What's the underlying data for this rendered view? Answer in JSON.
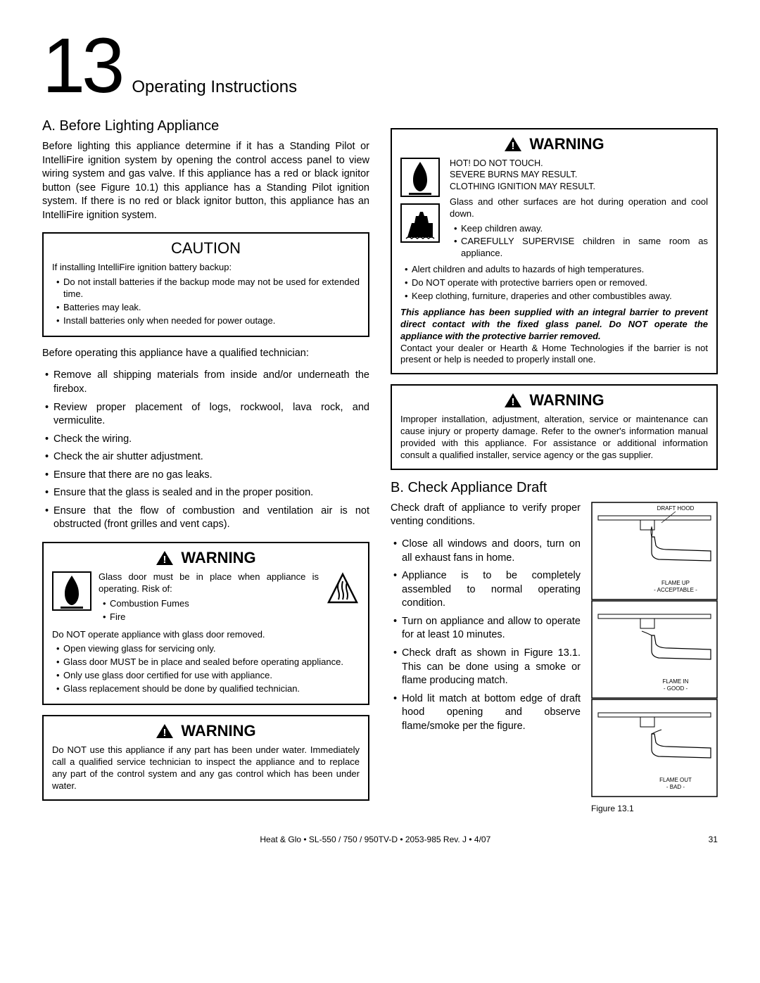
{
  "header": {
    "section_number": "13",
    "section_title": "Operating Instructions"
  },
  "left": {
    "a_head": "A.  Before Lighting Appliance",
    "a_intro": "Before lighting this appliance determine if it has a Standing Pilot or IntelliFire ignition system by opening the control access panel to view wiring system and gas valve. If this appliance has a red or black ignitor button (see Figure 10.1) this appliance has a Standing Pilot ignition system. If there is no red or black ignitor button, this appliance has an IntelliFire ignition system.",
    "caution_title": "CAUTION",
    "caution_lead": "If installing IntelliFire ignition battery backup:",
    "caution_items": [
      "Do not install batteries if the backup mode may not be used for extended time.",
      "Batteries may leak.",
      "Install batteries only when needed for power outage."
    ],
    "before_op": "Before operating this appliance have a qualified technician:",
    "before_items": [
      "Remove all shipping materials from inside and/or underneath the firebox.",
      "Review proper placement of logs, rockwool, lava rock, and vermiculite.",
      "Check the wiring.",
      "Check the air shutter adjustment.",
      "Ensure that there are no gas leaks.",
      "Ensure that the glass is sealed and in the proper position.",
      "Ensure that the flow of combustion and ventilation air is not obstructed (front grilles and vent caps)."
    ],
    "warn1_title": "WARNING",
    "warn1_lead": "Glass door must be in place when appliance is operating. Risk of:",
    "warn1_sub": [
      "Combustion Fumes",
      "Fire"
    ],
    "warn1_line": "Do NOT operate appliance with glass door removed.",
    "warn1_items": [
      "Open viewing glass for servicing only.",
      "Glass door MUST be in place and sealed before operating appliance.",
      "Only use glass door certified for use with appliance.",
      "Glass replacement should be done by qualified technician."
    ],
    "warn2_title": "WARNING",
    "warn2_text": "Do NOT use this appliance if any part has been under water. Immediately call a qualified service technician to inspect the appliance and to replace any part of the control system and any gas control which has been under water."
  },
  "right": {
    "warn3_title": "WARNING",
    "hot1": "HOT! DO NOT TOUCH.",
    "hot2": "SEVERE BURNS MAY RESULT.",
    "hot3": "CLOTHING IGNITION MAY RESULT.",
    "hot_body": "Glass and other surfaces are hot during operation and cool down.",
    "hot_items_small": [
      "Keep children away.",
      "CAREFULLY SUPERVISE children in same room as appliance."
    ],
    "hot_items": [
      "Alert children and adults to hazards of high temperatures.",
      "Do NOT operate with protective barriers open or removed.",
      "Keep clothing, furniture, draperies and other combustibles away."
    ],
    "barrier_bold": "This appliance has been supplied with an integral barrier to prevent direct contact with the fixed glass panel. Do NOT operate the appliance with the protective barrier removed.",
    "barrier_tail": "Contact your dealer or Hearth & Home Technologies if the barrier is not present or help is needed to properly install one.",
    "warn4_title": "WARNING",
    "warn4_text": "Improper installation, adjustment, alteration, service or maintenance can cause injury or property damage. Refer to the owner's information manual provided with this appliance. For assistance or additional information consult a qualified installer, service agency or the gas supplier.",
    "b_head": "B.  Check Appliance Draft",
    "b_intro": "Check draft of appliance to verify proper venting conditions.",
    "b_items": [
      "Close all windows and doors, turn on all exhaust fans in home.",
      "Appliance is to be completely assembled to normal operating condition.",
      "Turn on appliance and allow to operate for at least 10 minutes.",
      "Check draft as shown in Figure 13.1. This can be done using a smoke or flame producing match.",
      "Hold lit match at bottom edge of draft hood opening and observe flame/smoke per the figure."
    ],
    "fig_labels": {
      "hood": "DRAFT HOOD",
      "up": "FLAME UP\n- ACCEPTABLE -",
      "in": "FLAME IN\n- GOOD -",
      "out": "FLAME OUT\n- BAD -"
    },
    "fig_caption": "Figure  13.1"
  },
  "footer": {
    "center": "Heat & Glo  •  SL-550 / 750 / 950TV-D  •  2053-985 Rev. J  •  4/07",
    "page": "31"
  },
  "colors": {
    "text": "#000000",
    "bg": "#ffffff",
    "border": "#000000"
  }
}
